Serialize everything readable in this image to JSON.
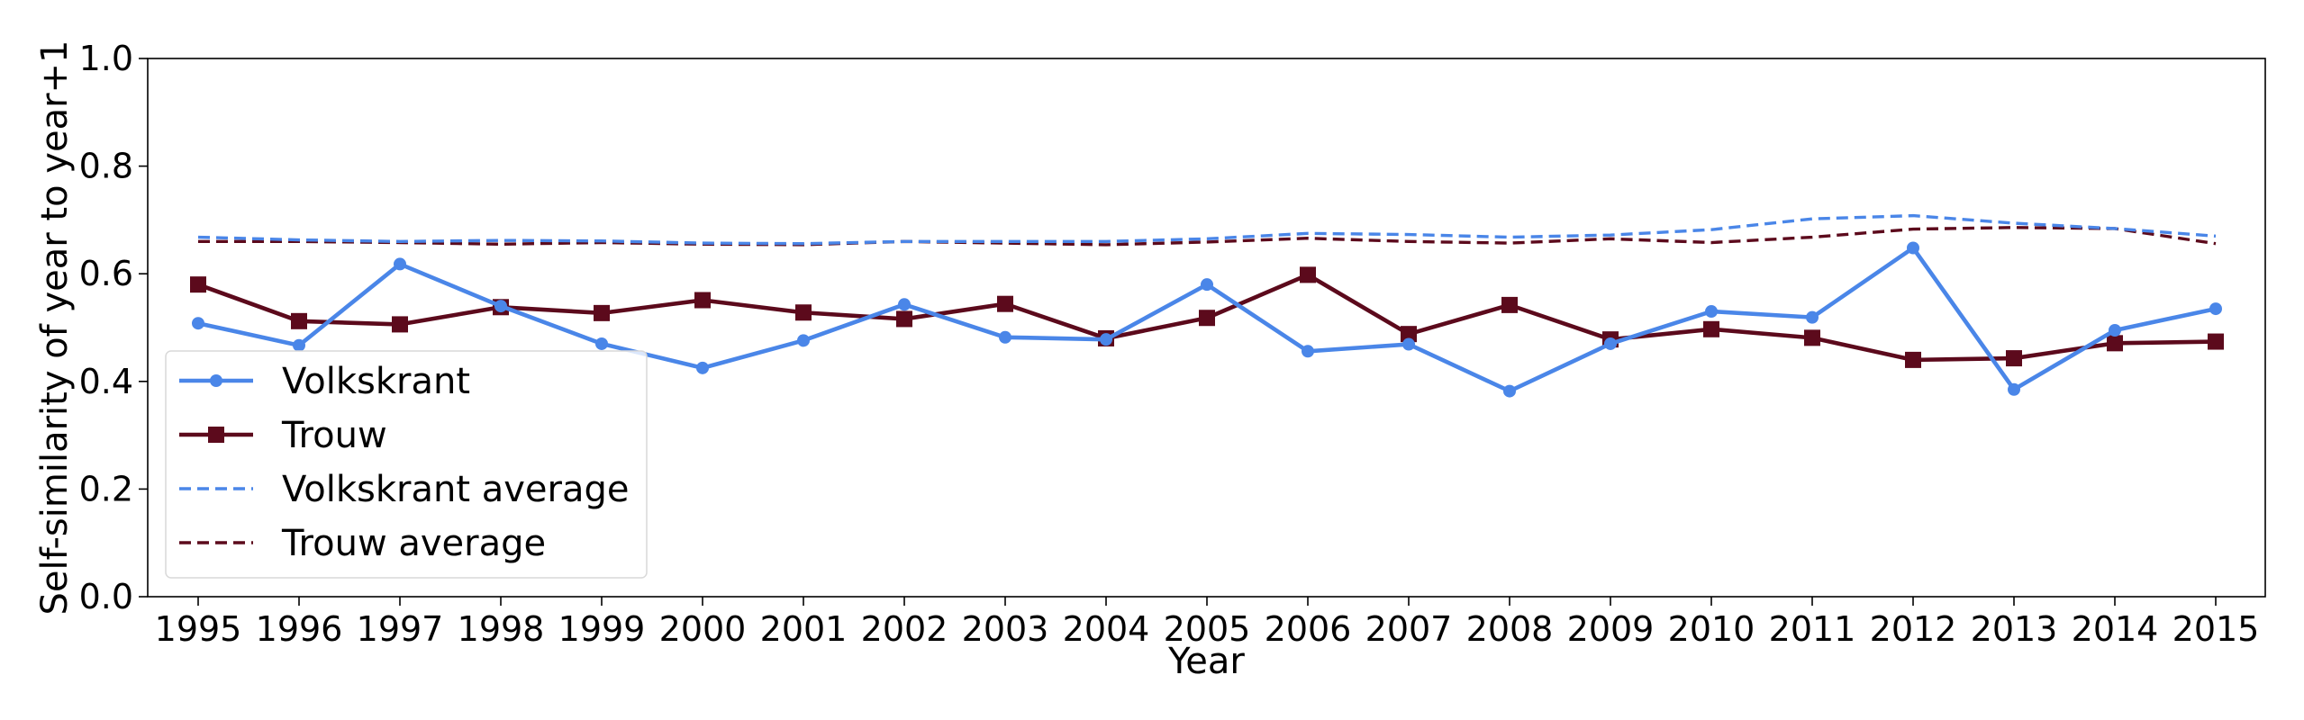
{
  "chart_data": {
    "type": "line",
    "xlabel": "Year",
    "ylabel": "Self-similarity of year to year+1",
    "ylim": [
      0.0,
      1.0
    ],
    "yticks": [
      "0.0",
      "0.2",
      "0.4",
      "0.6",
      "0.8",
      "1.0"
    ],
    "x": [
      "1995",
      "1996",
      "1997",
      "1998",
      "1999",
      "2000",
      "2001",
      "2002",
      "2003",
      "2004",
      "2005",
      "2006",
      "2007",
      "2008",
      "2009",
      "2010",
      "2011",
      "2012",
      "2013",
      "2014",
      "2015"
    ],
    "grid": false,
    "legend_position": "lower-left",
    "series": [
      {
        "name": "Volkskrant",
        "color": "#4a86e8",
        "style": "solid",
        "marker": "circle",
        "values": [
          0.508,
          0.467,
          0.618,
          0.54,
          0.47,
          0.425,
          0.476,
          0.543,
          0.482,
          0.478,
          0.58,
          0.456,
          0.469,
          0.382,
          0.47,
          0.53,
          0.519,
          0.648,
          0.385,
          0.495,
          0.535
        ]
      },
      {
        "name": "Trouw",
        "color": "#5c0a1c",
        "style": "solid",
        "marker": "square",
        "values": [
          0.58,
          0.512,
          0.506,
          0.538,
          0.527,
          0.551,
          0.528,
          0.516,
          0.544,
          0.48,
          0.518,
          0.598,
          0.488,
          0.542,
          0.478,
          0.497,
          0.481,
          0.44,
          0.443,
          0.471,
          0.474
        ]
      },
      {
        "name": "Volkskrant average",
        "color": "#4a86e8",
        "style": "dashed",
        "marker": "none",
        "values": [
          0.668,
          0.663,
          0.66,
          0.662,
          0.661,
          0.657,
          0.656,
          0.66,
          0.66,
          0.66,
          0.665,
          0.675,
          0.673,
          0.668,
          0.672,
          0.682,
          0.702,
          0.708,
          0.694,
          0.684,
          0.67
        ]
      },
      {
        "name": "Trouw average",
        "color": "#5c0a1c",
        "style": "dashed",
        "marker": "none",
        "values": [
          0.66,
          0.66,
          0.658,
          0.655,
          0.658,
          0.655,
          0.654,
          0.66,
          0.657,
          0.654,
          0.659,
          0.666,
          0.66,
          0.657,
          0.665,
          0.658,
          0.668,
          0.683,
          0.686,
          0.684,
          0.656
        ]
      }
    ]
  }
}
